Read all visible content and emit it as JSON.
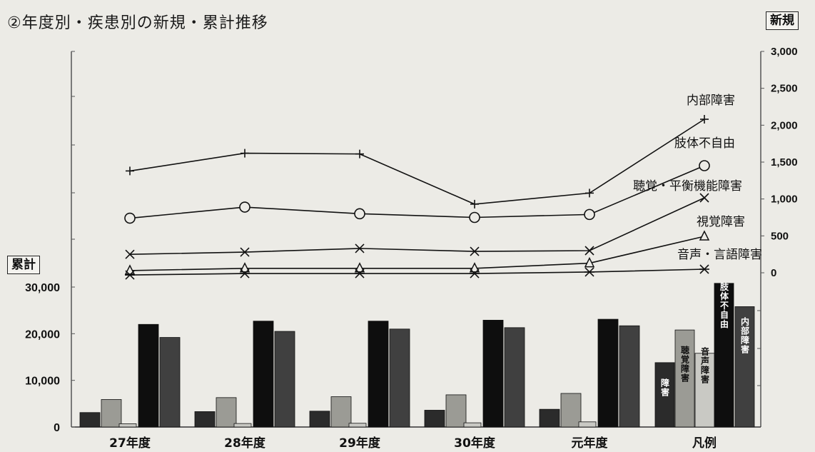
{
  "title": "②年度別・疾患別の新規・累計推移",
  "chart_data": {
    "categories": [
      "27年度",
      "28年度",
      "29年度",
      "30年度",
      "元年度",
      "凡例"
    ],
    "right_axis": {
      "label": "新規",
      "ticks": [
        "3,000",
        "2,500",
        "2,000",
        "1,500",
        "1,000",
        "500",
        "0"
      ],
      "range": [
        0,
        3000
      ]
    },
    "left_axis": {
      "label": "累計",
      "ticks": [
        "30,000",
        "20,000",
        "10,000",
        "0"
      ],
      "range": [
        0,
        30000
      ]
    },
    "lines": [
      {
        "name": "内部障害",
        "marker": "plus",
        "values": [
          1380,
          1620,
          1610,
          930,
          1080
        ]
      },
      {
        "name": "肢体不自由",
        "marker": "circle",
        "values": [
          740,
          890,
          800,
          750,
          790
        ]
      },
      {
        "name": "聴覚・平衡機能障害",
        "marker": "x",
        "values": [
          250,
          280,
          330,
          290,
          300
        ]
      },
      {
        "name": "視覚障害",
        "marker": "triangle",
        "values": [
          30,
          60,
          60,
          60,
          130
        ]
      },
      {
        "name": "音声・言語障害",
        "marker": "asterisk",
        "values": [
          -30,
          -10,
          -10,
          -10,
          10
        ]
      }
    ],
    "bars": [
      {
        "name": "視覚障害",
        "color": "#2b2b2b",
        "values": [
          3100,
          3300,
          3400,
          3600,
          3800
        ]
      },
      {
        "name": "聴覚障害",
        "color": "#9b9b95",
        "values": [
          5900,
          6300,
          6500,
          6900,
          7200
        ]
      },
      {
        "name": "音声障害",
        "color": "#c9c9c4",
        "values": [
          700,
          750,
          800,
          900,
          1100
        ]
      },
      {
        "name": "肢体不自由",
        "color": "#0e0e0e",
        "values": [
          22000,
          22700,
          22700,
          22900,
          23100
        ]
      },
      {
        "name": "内部障害",
        "color": "#404040",
        "values": [
          19200,
          20500,
          21000,
          21300,
          21700
        ]
      }
    ],
    "legend_bar_labels": [
      "障害",
      "聴覚障害",
      "音声障害",
      "肢体不自由",
      "内部障害"
    ]
  }
}
